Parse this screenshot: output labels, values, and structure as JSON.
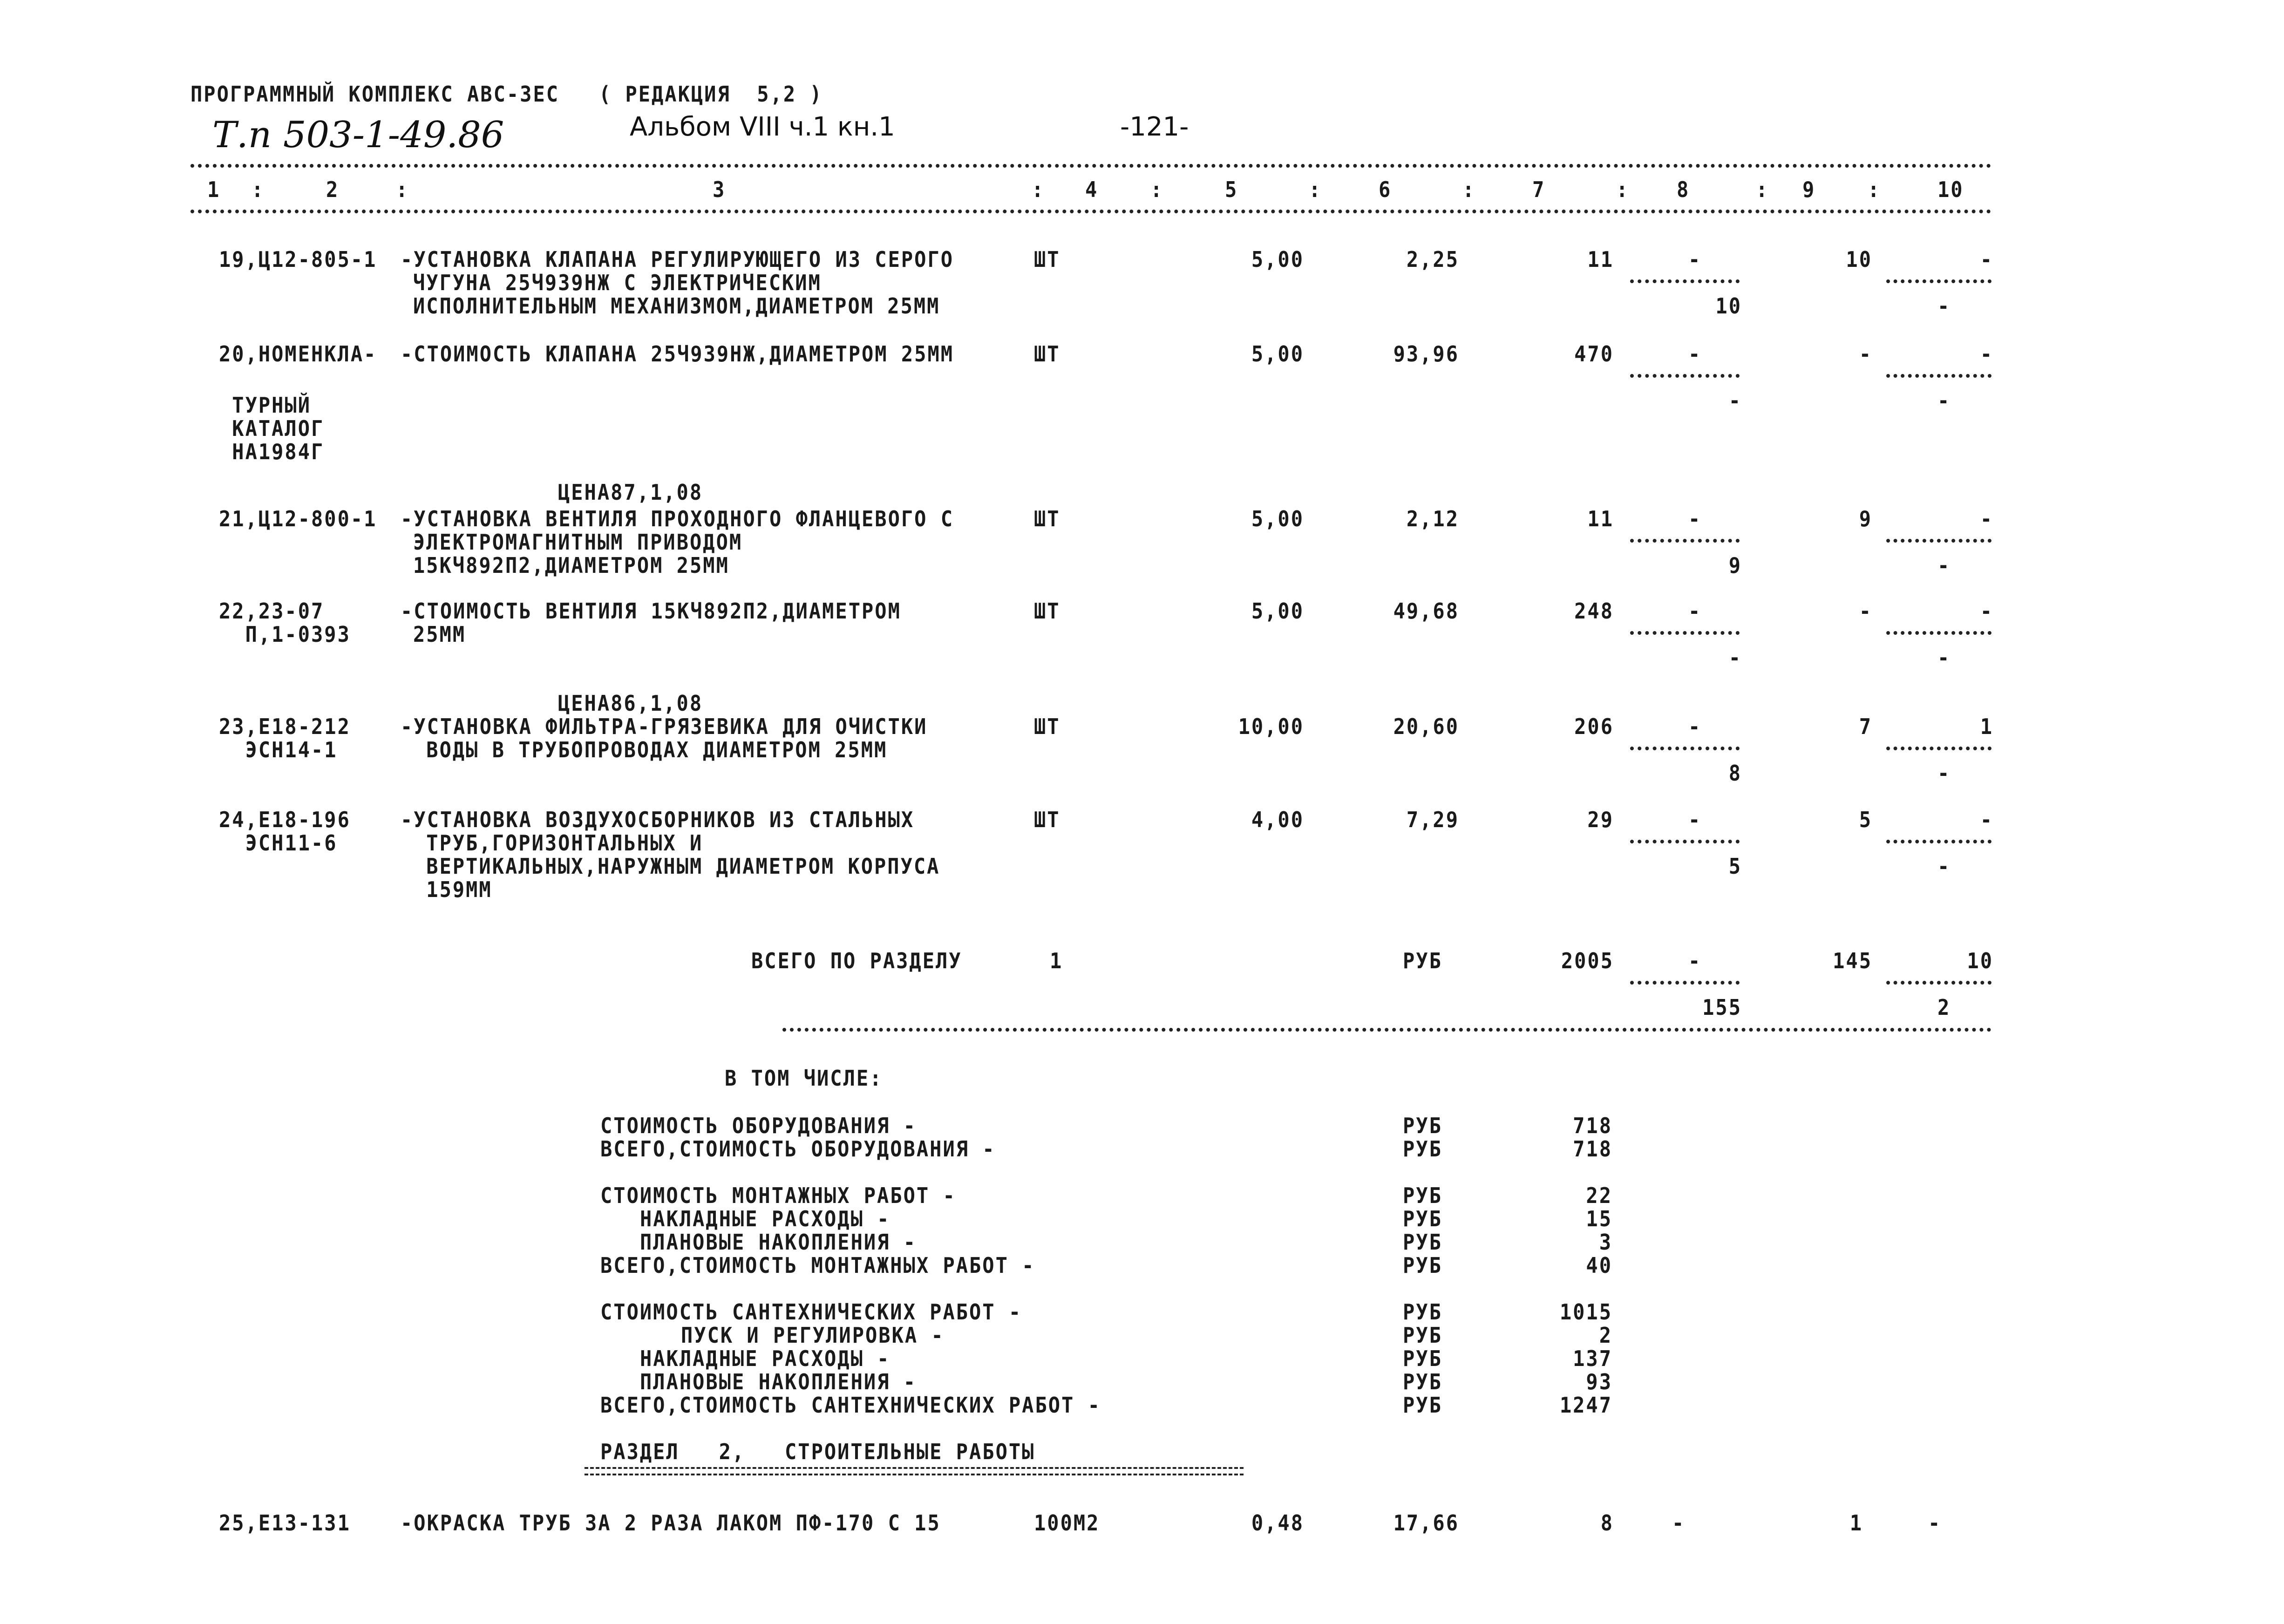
{
  "header": {
    "program": "ПРОГРАММНЫЙ КОМПЛЕКС АВС-3ЕС   ( РЕДАКЦИЯ  5,2 )",
    "project_code": "Т.п 503-1-49.86",
    "album": "Альбом VIII ч.1 кн.1",
    "page": "-121-",
    "columns": [
      "1",
      "2",
      "3",
      "4",
      "5",
      "6",
      "7",
      "8",
      "9",
      "10"
    ]
  },
  "items": [
    {
      "code": [
        "19,Ц12-805-1"
      ],
      "desc": [
        "-УСТАНОВКА КЛАПАНА РЕГУЛИРУЮЩЕГО ИЗ СЕРОГО",
        "ЧУГУНА 25Ч939НЖ С ЭЛЕКТРИЧЕСКИМ",
        "ИСПОЛНИТЕЛЬНЫМ МЕХАНИЗМОМ,ДИАМЕТРОМ 25ММ"
      ],
      "unit": "ШТ",
      "qty": "5,00",
      "price": "2,25",
      "total": "11",
      "c8_top": "-",
      "c8_bottom": "10",
      "c9": "10",
      "c10_top": "-",
      "c10_bottom": "-"
    },
    {
      "code": [
        "20,НОМЕНКЛА-",
        " ТУРНЫЙ",
        " КАТАЛОГ",
        " НА1984Г"
      ],
      "desc": [
        "-СТОИМОСТЬ КЛАПАНА 25Ч939НЖ,ДИАМЕТРОМ 25ММ"
      ],
      "unit": "ШТ",
      "qty": "5,00",
      "price": "93,96",
      "total": "470",
      "c8_top": "-",
      "c8_bottom": "-",
      "c9": "-",
      "c10_top": "-",
      "c10_bottom": "-"
    },
    {
      "note": "ЦЕНА87,1,08",
      "code": [
        "21,Ц12-800-1"
      ],
      "desc": [
        "-УСТАНОВКА ВЕНТИЛЯ ПРОХОДНОГО ФЛАНЦЕВОГО С",
        "ЭЛЕКТРОМАГНИТНЫМ ПРИВОДОМ",
        "15КЧ892П2,ДИАМЕТРОМ 25ММ"
      ],
      "unit": "ШТ",
      "qty": "5,00",
      "price": "2,12",
      "total": "11",
      "c8_top": "-",
      "c8_bottom": "9",
      "c9": "9",
      "c10_top": "-",
      "c10_bottom": "-"
    },
    {
      "code": [
        "22,23-07",
        "  П,1-0393"
      ],
      "desc": [
        "-СТОИМОСТЬ ВЕНТИЛЯ 15КЧ892П2,ДИАМЕТРОМ",
        "25ММ"
      ],
      "unit": "ШТ",
      "qty": "5,00",
      "price": "49,68",
      "total": "248",
      "c8_top": "-",
      "c8_bottom": "-",
      "c9": "-",
      "c10_top": "-",
      "c10_bottom": "-"
    },
    {
      "note": "ЦЕНА86,1,08",
      "code": [
        "23,Е18-212",
        "  ЭСН14-1"
      ],
      "desc": [
        "-УСТАНОВКА ФИЛЬТРА-ГРЯЗЕВИКА ДЛЯ ОЧИСТКИ",
        " ВОДЫ В ТРУБОПРОВОДАХ ДИАМЕТРОМ 25ММ"
      ],
      "unit": "ШТ",
      "qty": "10,00",
      "price": "20,60",
      "total": "206",
      "c8_top": "-",
      "c8_bottom": "8",
      "c9": "7",
      "c10_top": "1",
      "c10_bottom": "-"
    },
    {
      "code": [
        "24,Е18-196",
        "  ЭСН11-6"
      ],
      "desc": [
        "-УСТАНОВКА ВОЗДУХОСБОРНИКОВ ИЗ СТАЛЬНЫХ",
        " ТРУБ,ГОРИЗОНТАЛЬНЫХ И",
        " ВЕРТИКАЛЬНЫХ,НАРУЖНЫМ ДИАМЕТРОМ КОРПУСА",
        " 159ММ"
      ],
      "unit": "ШТ",
      "qty": "4,00",
      "price": "7,29",
      "total": "29",
      "c8_top": "-",
      "c8_bottom": "5",
      "c9": "5",
      "c10_top": "-",
      "c10_bottom": "-"
    }
  ],
  "section_total": {
    "label": "ВСЕГО ПО РАЗДЕЛУ",
    "section": "1",
    "unit": "РУБ",
    "total": "2005",
    "c8_top": "-",
    "c8_bottom": "155",
    "c9": "145",
    "c10_top": "10",
    "c10_bottom": "2"
  },
  "breakdown": {
    "title": "В ТОМ ЧИСЛЕ:",
    "lines": [
      {
        "label": "СТОИМОСТЬ ОБОРУДОВАНИЯ -",
        "unit": "РУБ",
        "value": "718",
        "indent": 0
      },
      {
        "label": "ВСЕГО,СТОИМОСТЬ ОБОРУДОВАНИЯ -",
        "unit": "РУБ",
        "value": "718",
        "indent": 0
      },
      {
        "label": "СТОИМОСТЬ МОНТАЖНЫХ РАБОТ -",
        "unit": "РУБ",
        "value": "22",
        "indent": 0
      },
      {
        "label": "НАКЛАДНЫЕ РАСХОДЫ -",
        "unit": "РУБ",
        "value": "15",
        "indent": 1
      },
      {
        "label": "ПЛАНОВЫЕ НАКОПЛЕНИЯ -",
        "unit": "РУБ",
        "value": "3",
        "indent": 1
      },
      {
        "label": "ВСЕГО,СТОИМОСТЬ МОНТАЖНЫХ РАБОТ -",
        "unit": "РУБ",
        "value": "40",
        "indent": 0
      },
      {
        "label": "СТОИМОСТЬ САНТЕХНИЧЕСКИХ РАБОТ -",
        "unit": "РУБ",
        "value": "1015",
        "indent": 0
      },
      {
        "label": "ПУСК И РЕГУЛИРОВКА -",
        "unit": "РУБ",
        "value": "2",
        "indent": 2
      },
      {
        "label": "НАКЛАДНЫЕ РАСХОДЫ -",
        "unit": "РУБ",
        "value": "137",
        "indent": 1
      },
      {
        "label": "ПЛАНОВЫЕ НАКОПЛЕНИЯ -",
        "unit": "РУБ",
        "value": "93",
        "indent": 1
      },
      {
        "label": "ВСЕГО,СТОИМОСТЬ САНТЕХНИЧЕСКИХ РАБОТ -",
        "unit": "РУБ",
        "value": "1247",
        "indent": 0
      }
    ]
  },
  "section2": {
    "title": "РАЗДЕЛ   2,   СТРОИТЕЛЬНЫЕ РАБОТЫ"
  },
  "item25": {
    "code": "25,Е13-131",
    "desc": "-ОКРАСКА ТРУБ ЗА 2 РАЗА ЛАКОМ ПФ-170 С 15",
    "unit": "100М2",
    "qty": "0,48",
    "price": "17,66",
    "total": "8",
    "c8": "-",
    "c9": "1",
    "c10": "-"
  }
}
